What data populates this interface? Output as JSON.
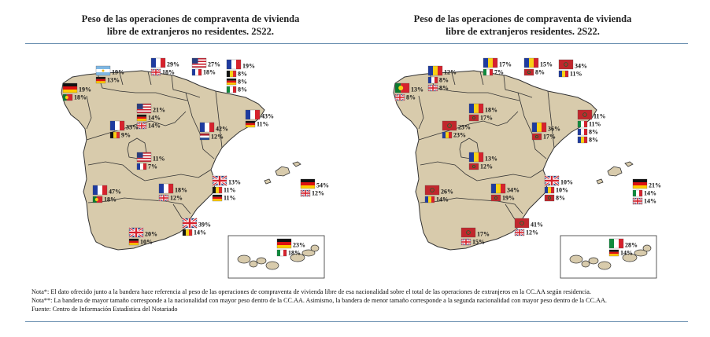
{
  "colors": {
    "land": "#d8cbac",
    "border": "#333333",
    "rule": "#6a8fb0"
  },
  "maps": [
    {
      "title_line1": "Peso de las operaciones de compraventa de vivienda",
      "title_line2": "libre de extranjeros no residentes. 2S22.",
      "regions": [
        {
          "name": "galicia",
          "rows": [
            {
              "flag": "germany",
              "value": "19%"
            },
            {
              "flag": "portugal",
              "value": "18%"
            }
          ]
        },
        {
          "name": "asturias",
          "rows": [
            {
              "flag": "argentina",
              "value": "19%"
            },
            {
              "flag": "germany",
              "value": "13%"
            }
          ]
        },
        {
          "name": "cantabria",
          "rows": [
            {
              "flag": "france",
              "value": "29%"
            },
            {
              "flag": "uk",
              "value": "18%"
            }
          ]
        },
        {
          "name": "pais-vasco",
          "rows": [
            {
              "flag": "usa",
              "value": "27%"
            },
            {
              "flag": "france",
              "value": "18%"
            }
          ]
        },
        {
          "name": "navarra",
          "rows": [
            {
              "flag": "france",
              "value": "19%"
            },
            {
              "flag": "belgium",
              "value": "8%"
            },
            {
              "flag": "germany",
              "value": "8%"
            },
            {
              "flag": "italy",
              "value": "8%"
            }
          ]
        },
        {
          "name": "castilla-leon",
          "rows": [
            {
              "flag": "usa",
              "value": "21%"
            },
            {
              "flag": "germany",
              "value": "14%"
            },
            {
              "flag": "uk",
              "value": "14%"
            }
          ]
        },
        {
          "name": "la-rioja",
          "rows": [
            {
              "flag": "france",
              "value": "33%"
            },
            {
              "flag": "belgium",
              "value": "9%"
            }
          ]
        },
        {
          "name": "aragon",
          "rows": [
            {
              "flag": "france",
              "value": "42%"
            },
            {
              "flag": "netherlands",
              "value": "12%"
            }
          ]
        },
        {
          "name": "cataluna",
          "rows": [
            {
              "flag": "france",
              "value": "43%"
            },
            {
              "flag": "germany",
              "value": "11%"
            }
          ]
        },
        {
          "name": "madrid",
          "rows": [
            {
              "flag": "usa",
              "value": "11%"
            },
            {
              "flag": "france",
              "value": "7%"
            }
          ]
        },
        {
          "name": "extremadura",
          "rows": [
            {
              "flag": "france",
              "value": "47%"
            },
            {
              "flag": "portugal",
              "value": "18%"
            }
          ]
        },
        {
          "name": "castilla-la-mancha",
          "rows": [
            {
              "flag": "france",
              "value": "18%"
            },
            {
              "flag": "uk",
              "value": "12%"
            }
          ]
        },
        {
          "name": "valencia",
          "rows": [
            {
              "flag": "uk",
              "value": "13%"
            },
            {
              "flag": "belgium",
              "value": "11%"
            },
            {
              "flag": "germany",
              "value": "11%"
            }
          ]
        },
        {
          "name": "baleares",
          "rows": [
            {
              "flag": "germany",
              "value": "54%"
            },
            {
              "flag": "uk",
              "value": "12%"
            }
          ]
        },
        {
          "name": "murcia",
          "rows": [
            {
              "flag": "uk",
              "value": "39%"
            },
            {
              "flag": "belgium",
              "value": "14%"
            }
          ]
        },
        {
          "name": "andalucia",
          "rows": [
            {
              "flag": "uk",
              "value": "20%"
            },
            {
              "flag": "germany",
              "value": "10%"
            }
          ]
        },
        {
          "name": "canarias",
          "rows": [
            {
              "flag": "germany",
              "value": "23%"
            },
            {
              "flag": "italy",
              "value": "18%"
            }
          ]
        }
      ]
    },
    {
      "title_line1": "Peso de las operaciones de compraventa de vivienda",
      "title_line2": "libre de extranjeros residentes. 2S22.",
      "regions": [
        {
          "name": "galicia",
          "rows": [
            {
              "flag": "portugal",
              "value": "13%"
            },
            {
              "flag": "uk",
              "value": "8%"
            }
          ]
        },
        {
          "name": "asturias",
          "rows": [
            {
              "flag": "romania",
              "value": "12%"
            },
            {
              "flag": "france",
              "value": "8%"
            },
            {
              "flag": "uk",
              "value": "8%"
            }
          ]
        },
        {
          "name": "cantabria",
          "rows": [
            {
              "flag": "romania",
              "value": "17%"
            },
            {
              "flag": "italy",
              "value": "7%"
            }
          ]
        },
        {
          "name": "pais-vasco",
          "rows": [
            {
              "flag": "romania",
              "value": "15%"
            },
            {
              "flag": "morocco",
              "value": "8%"
            }
          ]
        },
        {
          "name": "navarra",
          "rows": [
            {
              "flag": "morocco",
              "value": "34%"
            },
            {
              "flag": "romania",
              "value": "11%"
            }
          ]
        },
        {
          "name": "castilla-leon",
          "rows": [
            {
              "flag": "romania",
              "value": "18%"
            },
            {
              "flag": "morocco",
              "value": "17%"
            }
          ]
        },
        {
          "name": "la-rioja",
          "rows": [
            {
              "flag": "morocco",
              "value": "25%"
            },
            {
              "flag": "romania",
              "value": "23%"
            }
          ]
        },
        {
          "name": "aragon",
          "rows": [
            {
              "flag": "romania",
              "value": "36%"
            },
            {
              "flag": "morocco",
              "value": "17%"
            }
          ]
        },
        {
          "name": "cataluna",
          "rows": [
            {
              "flag": "morocco",
              "value": "11%"
            },
            {
              "flag": "italy",
              "value": "11%"
            },
            {
              "flag": "france",
              "value": "8%"
            },
            {
              "flag": "romania",
              "value": "8%"
            }
          ]
        },
        {
          "name": "madrid",
          "rows": [
            {
              "flag": "romania",
              "value": "13%"
            },
            {
              "flag": "morocco",
              "value": "12%"
            }
          ]
        },
        {
          "name": "extremadura",
          "rows": [
            {
              "flag": "morocco",
              "value": "26%"
            },
            {
              "flag": "romania",
              "value": "14%"
            }
          ]
        },
        {
          "name": "castilla-la-mancha",
          "rows": [
            {
              "flag": "romania",
              "value": "34%"
            },
            {
              "flag": "morocco",
              "value": "19%"
            }
          ]
        },
        {
          "name": "valencia",
          "rows": [
            {
              "flag": "uk",
              "value": "10%"
            },
            {
              "flag": "romania",
              "value": "10%"
            },
            {
              "flag": "morocco",
              "value": "8%"
            }
          ]
        },
        {
          "name": "baleares",
          "rows": [
            {
              "flag": "germany",
              "value": "21%"
            },
            {
              "flag": "italy",
              "value": "14%"
            },
            {
              "flag": "uk",
              "value": "14%"
            }
          ]
        },
        {
          "name": "murcia",
          "rows": [
            {
              "flag": "morocco",
              "value": "41%"
            },
            {
              "flag": "uk",
              "value": "12%"
            }
          ]
        },
        {
          "name": "andalucia",
          "rows": [
            {
              "flag": "morocco",
              "value": "17%"
            },
            {
              "flag": "uk",
              "value": "15%"
            }
          ]
        },
        {
          "name": "canarias",
          "rows": [
            {
              "flag": "italy",
              "value": "28%"
            },
            {
              "flag": "germany",
              "value": "14%"
            }
          ]
        }
      ]
    }
  ],
  "notes": {
    "line1": "Nota*: El dato ofrecido junto a la bandera hace referencia al peso de las operaciones de compraventa de vivienda libre de esa nacionalidad  sobre el total de las operaciones de extranjeros en la CC.AA según residencia.",
    "line2": "Nota**: La bandera de mayor tamaño corresponde a la nacionalidad  con mayor peso dentro de la CC.AA. Asimismo, la bandera de menor tamaño corresponde a la segunda nacionalidad  con mayor peso dentro de la CC.AA.",
    "line3": "Fuente: Centro de Información Estadística del Notariado"
  }
}
